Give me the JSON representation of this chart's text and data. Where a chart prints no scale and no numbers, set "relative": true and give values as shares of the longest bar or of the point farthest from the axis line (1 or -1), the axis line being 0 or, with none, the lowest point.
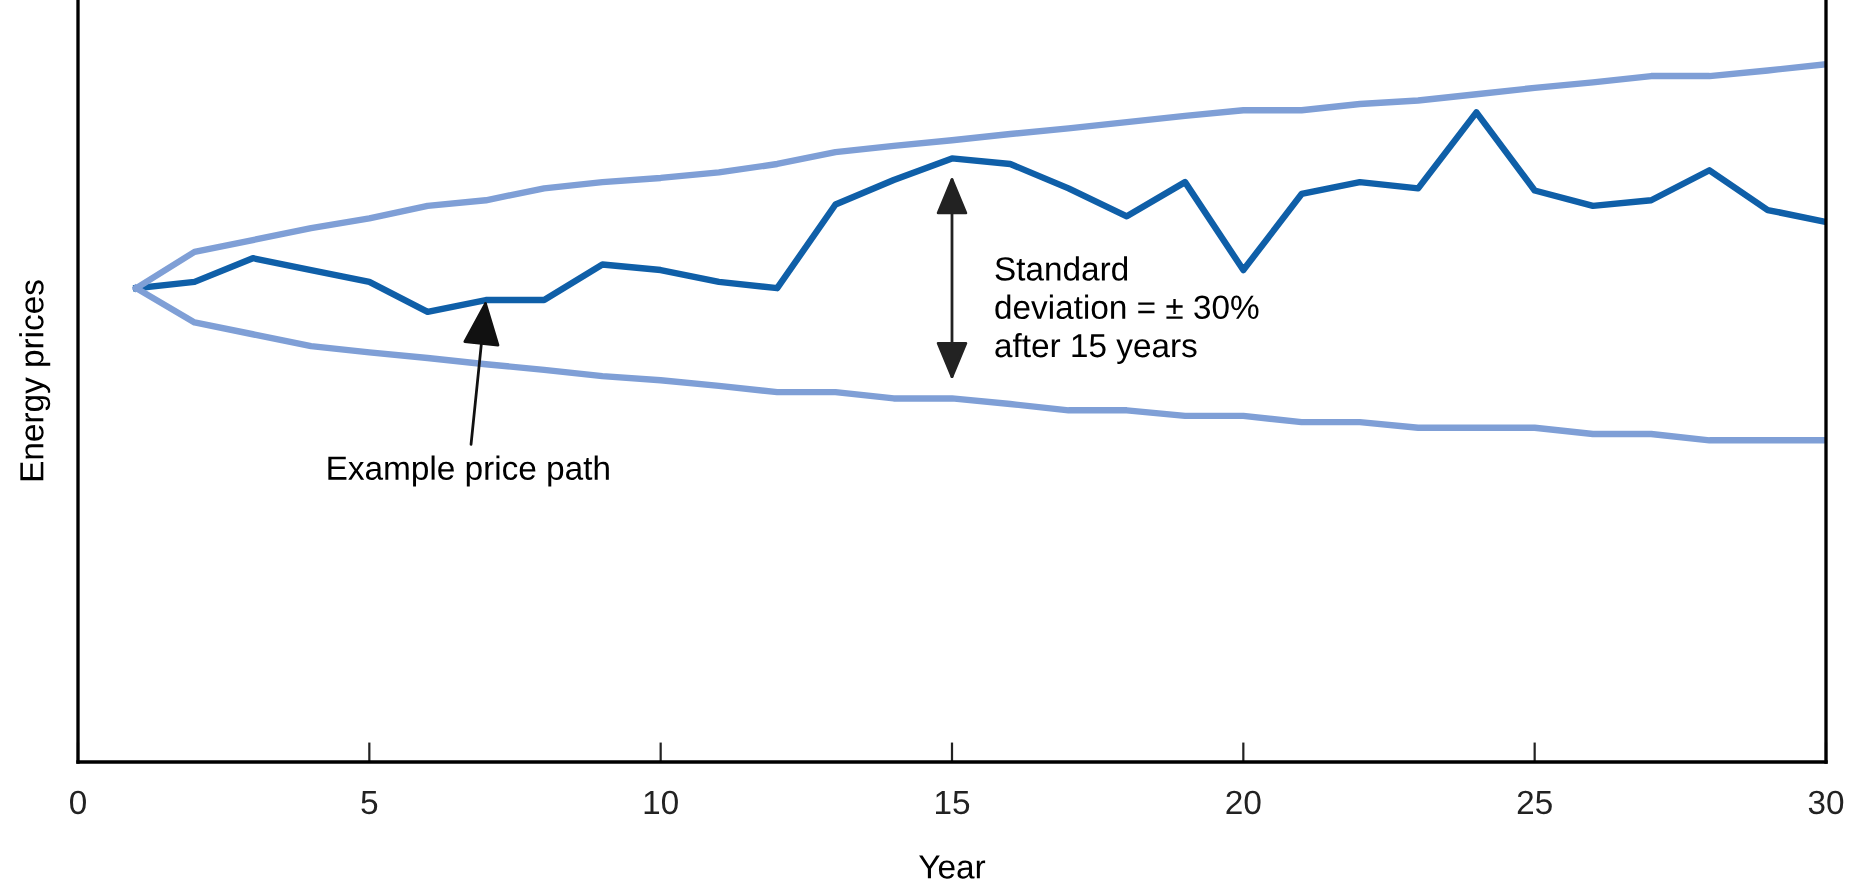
{
  "chart_data": {
    "type": "line",
    "relative": true,
    "xlabel": "Year",
    "ylabel": "Energy prices",
    "x": [
      1,
      2,
      3,
      4,
      5,
      6,
      7,
      8,
      9,
      10,
      11,
      12,
      13,
      14,
      15,
      16,
      17,
      18,
      19,
      20,
      21,
      22,
      23,
      24,
      25,
      26,
      27,
      28,
      29,
      30
    ],
    "series": [
      {
        "color": "#0f5fa8",
        "values": [
          0.679,
          0.688,
          0.722,
          0.705,
          0.688,
          0.645,
          0.662,
          0.662,
          0.713,
          0.705,
          0.688,
          0.679,
          0.799,
          0.834,
          0.865,
          0.857,
          0.822,
          0.782,
          0.831,
          0.705,
          0.814,
          0.831,
          0.822,
          0.931,
          0.819,
          0.797,
          0.805,
          0.848,
          0.791,
          0.774
        ]
      },
      {
        "color": "#7f9fd6",
        "values": [
          0.679,
          0.731,
          0.748,
          0.765,
          0.779,
          0.797,
          0.805,
          0.822,
          0.831,
          0.837,
          0.845,
          0.857,
          0.874,
          0.883,
          0.891,
          0.9,
          0.908,
          0.917,
          0.926,
          0.934,
          0.934,
          0.943,
          0.948,
          0.957,
          0.966,
          0.974,
          0.983,
          0.983,
          0.991,
          1
        ]
      },
      {
        "color": "#7f9fd6",
        "values": [
          0.679,
          0.63,
          0.613,
          0.596,
          0.587,
          0.579,
          0.57,
          0.562,
          0.553,
          0.547,
          0.539,
          0.53,
          0.53,
          0.521,
          0.521,
          0.513,
          0.504,
          0.504,
          0.496,
          0.496,
          0.487,
          0.487,
          0.479,
          0.479,
          0.479,
          0.47,
          0.47,
          0.461,
          0.461,
          0.461
        ]
      }
    ],
    "xlim": [
      0,
      30
    ],
    "xticks": [
      0,
      5,
      10,
      15,
      20,
      25,
      30
    ],
    "grid": false,
    "legend": false,
    "marker": "none",
    "line_style": "solid",
    "annotations": [
      {
        "text": "Example price path",
        "x": 7,
        "y": 0.662
      },
      "Standard\ndeviation = ± 30%\nafter 15 years"
    ]
  }
}
